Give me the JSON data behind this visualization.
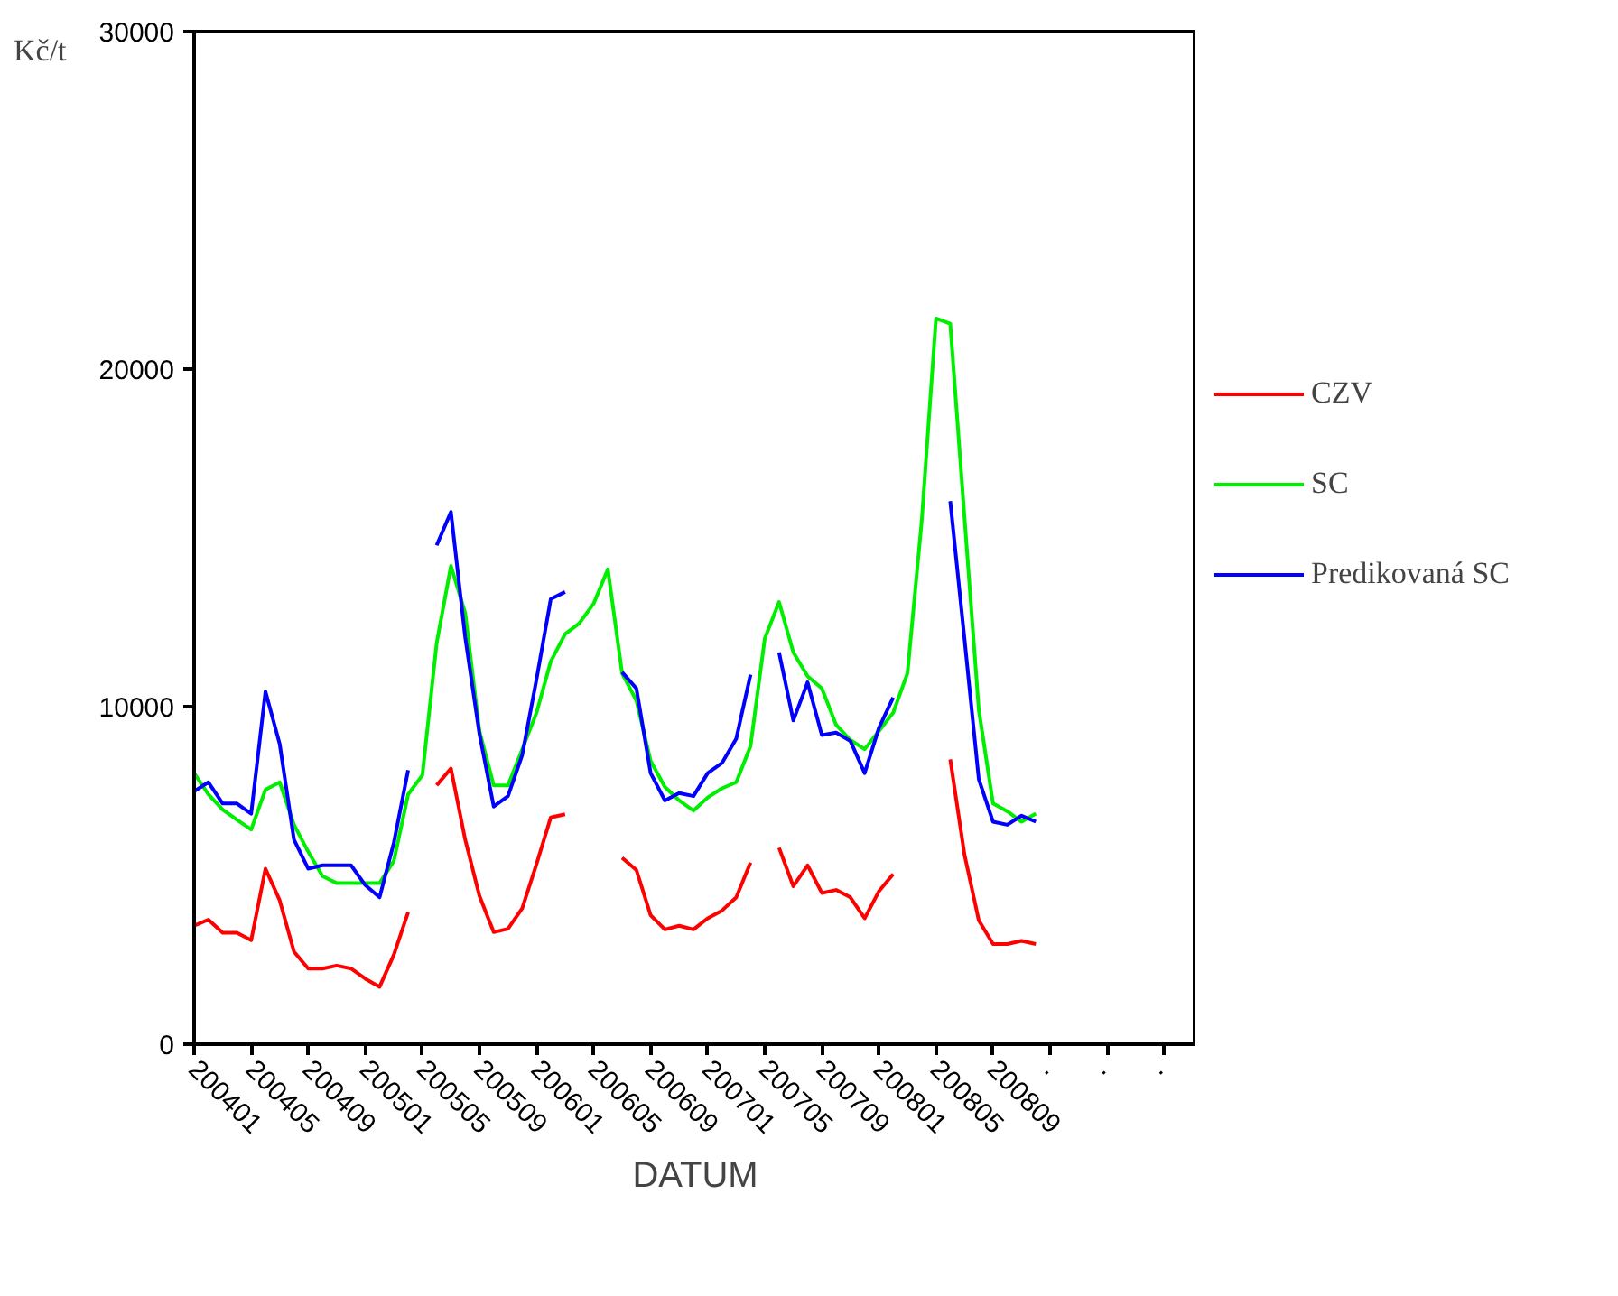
{
  "chart_data": {
    "type": "line",
    "xlabel": "DATUM",
    "ylabel": "Kč/t",
    "categories": [
      "200401",
      null,
      null,
      null,
      "200405",
      null,
      null,
      null,
      "200409",
      null,
      null,
      null,
      "200501",
      null,
      null,
      null,
      "200505",
      null,
      null,
      null,
      "200509",
      null,
      null,
      null,
      "200601",
      null,
      null,
      null,
      "200605",
      null,
      null,
      null,
      "200609",
      null,
      null,
      null,
      "200701",
      null,
      null,
      null,
      "200705",
      null,
      null,
      null,
      "200709",
      null,
      null,
      null,
      "200801",
      null,
      null,
      null,
      "200805",
      null,
      null,
      null,
      "200809",
      null,
      null,
      null,
      ".",
      null,
      null,
      null,
      ".",
      null,
      null,
      null,
      ".",
      null,
      null
    ],
    "series": [
      {
        "name": "CZV",
        "color": "#ff0000",
        "values": [
          3510,
          3690,
          3300,
          3300,
          3080,
          5200,
          4260,
          2740,
          2240,
          2240,
          2330,
          2240,
          1940,
          1700,
          2650,
          3910,
          null,
          7670,
          8170,
          6060,
          4390,
          3320,
          3420,
          4030,
          5340,
          6720,
          6810,
          null,
          null,
          null,
          5520,
          5160,
          3820,
          3400,
          3510,
          3400,
          3730,
          3960,
          4350,
          5380,
          null,
          5820,
          4680,
          5300,
          4480,
          4570,
          4350,
          3730,
          4530,
          5040,
          null,
          null,
          null,
          8440,
          5610,
          3670,
          2970,
          2970,
          3060,
          2970,
          null,
          null,
          null,
          null,
          null,
          null,
          null,
          null,
          null,
          null,
          null
        ]
      },
      {
        "name": "SC",
        "color": "#00ee00",
        "values": [
          8030,
          7400,
          6950,
          6650,
          6360,
          7540,
          7760,
          6500,
          5700,
          4980,
          4770,
          4770,
          4770,
          4770,
          5430,
          7400,
          7970,
          11880,
          14170,
          12780,
          9280,
          7670,
          7670,
          8740,
          9820,
          11340,
          12150,
          12470,
          13050,
          14070,
          10990,
          10180,
          8390,
          7620,
          7220,
          6920,
          7310,
          7580,
          7760,
          8830,
          12020,
          13100,
          11610,
          10900,
          10540,
          9460,
          9010,
          8740,
          9280,
          9820,
          10990,
          15500,
          21500,
          21350,
          15600,
          9910,
          7130,
          6900,
          6590,
          6830,
          null,
          null,
          null,
          null,
          null,
          null,
          null,
          null,
          null,
          null,
          null
        ]
      },
      {
        "name": "Predikovaná SC",
        "color": "#0000ff",
        "values": [
          7490,
          7760,
          7130,
          7130,
          6830,
          10450,
          8890,
          6060,
          5200,
          5300,
          5300,
          5300,
          4710,
          4350,
          5970,
          8120,
          null,
          14780,
          15770,
          12060,
          9190,
          7040,
          7350,
          8570,
          10810,
          13190,
          13400,
          null,
          null,
          null,
          11020,
          10540,
          8030,
          7220,
          7440,
          7350,
          8030,
          8330,
          9050,
          10950,
          null,
          11610,
          9590,
          10720,
          9160,
          9230,
          8980,
          8030,
          9370,
          10270,
          null,
          null,
          null,
          16090,
          12000,
          7850,
          6590,
          6500,
          6770,
          6590,
          null,
          null,
          null,
          null,
          null,
          null,
          null,
          null,
          null,
          null,
          null
        ]
      }
    ],
    "ylim": [
      0,
      30000
    ],
    "yticks": [
      0,
      10000,
      20000,
      30000
    ],
    "legend": "right",
    "grid": false,
    "marker": "none",
    "line_style": "solid"
  }
}
